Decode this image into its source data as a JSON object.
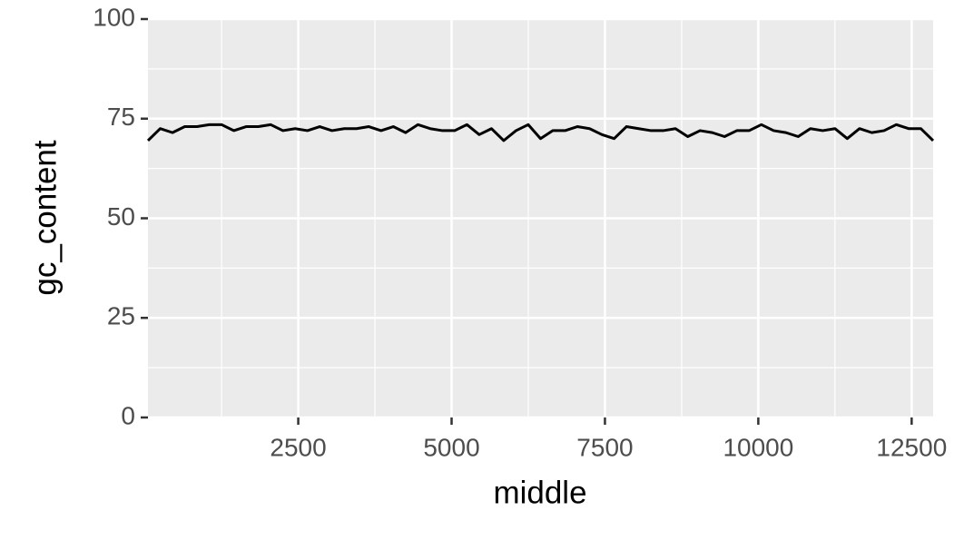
{
  "chart_data": {
    "type": "line",
    "x_label": "middle",
    "y_label": "gc_content",
    "x": [
      50,
      250,
      450,
      650,
      850,
      1050,
      1250,
      1450,
      1650,
      1850,
      2050,
      2250,
      2450,
      2650,
      2850,
      3050,
      3250,
      3450,
      3650,
      3850,
      4050,
      4250,
      4450,
      4650,
      4850,
      5050,
      5250,
      5450,
      5650,
      5850,
      6050,
      6250,
      6450,
      6650,
      6850,
      7050,
      7250,
      7450,
      7650,
      7850,
      8050,
      8250,
      8450,
      8650,
      8850,
      9050,
      9250,
      9450,
      9650,
      9850,
      10050,
      10250,
      10450,
      10650,
      10850,
      11050,
      11250,
      11450,
      11650,
      11850,
      12050,
      12250,
      12450,
      12650,
      12850
    ],
    "series": [
      {
        "name": "gc_content",
        "color": "#000000",
        "values": [
          69.5,
          72.5,
          71.5,
          73,
          73,
          73.5,
          73.5,
          72,
          73,
          73,
          73.5,
          72,
          72.5,
          72,
          73,
          72,
          72.5,
          72.5,
          73,
          72,
          73,
          71.5,
          73.5,
          72.5,
          72,
          72,
          73.5,
          71,
          72.5,
          69.5,
          72,
          73.5,
          70,
          72,
          72,
          73,
          72.5,
          71,
          70,
          73,
          72.5,
          72,
          72,
          72.5,
          70.5,
          72,
          71.5,
          70.5,
          72,
          72,
          73.5,
          72,
          71.5,
          70.5,
          72.5,
          72,
          72.5,
          70,
          72.5,
          71.5,
          72,
          73.5,
          72.5,
          72.5,
          69.5
        ]
      }
    ],
    "xlim": [
      50,
      12850
    ],
    "ylim": [
      0,
      100
    ],
    "xticks": [
      2500,
      5000,
      7500,
      10000,
      12500
    ],
    "yticks": [
      0,
      25,
      50,
      75,
      100
    ],
    "grid": true,
    "background": "#ebebeb"
  }
}
